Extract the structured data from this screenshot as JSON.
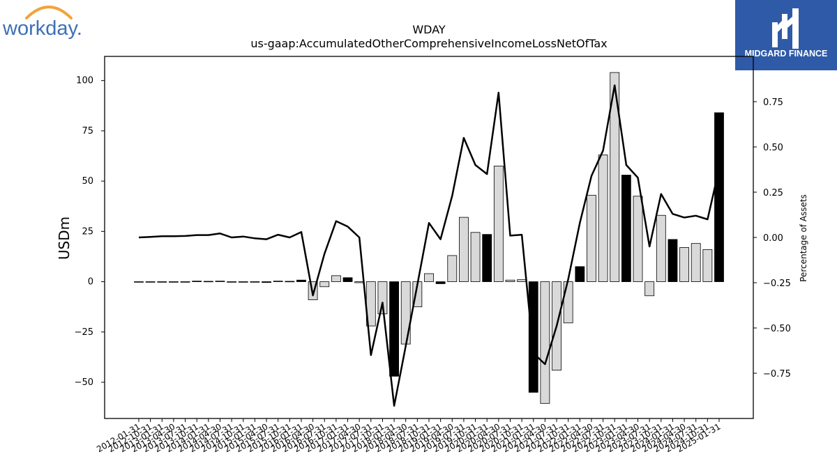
{
  "brand": {
    "left_logo_text": "workday.",
    "left_logo_color": "#3d6fb6",
    "left_logo_arc_color": "#f2a33a",
    "right_logo_text": "MIDGARD FINANCE",
    "right_logo_bg": "#2f5aa8"
  },
  "chart_data": {
    "type": "bar",
    "title": "WDAY",
    "subtitle": "us-gaap:AccumulatedOtherComprehensiveIncomeLossNetOfTax",
    "ylabel": "USDm",
    "ylabel_right": "Percentage of Assets",
    "ylim": [
      -68,
      112
    ],
    "ylim_right": [
      -1.0,
      1.0
    ],
    "yticks": [
      -50,
      -25,
      0,
      25,
      50,
      75,
      100
    ],
    "yticks_right": [
      -0.75,
      -0.5,
      -0.25,
      0.0,
      0.25,
      0.5,
      0.75
    ],
    "yticks_right_labels": [
      "−0.75",
      "−0.50",
      "−0.25",
      "0.00",
      "0.25",
      "0.50",
      "0.75"
    ],
    "ytick_labels": [
      "−50",
      "−25",
      "0",
      "25",
      "50",
      "75",
      "100"
    ],
    "grid": false,
    "categories": [
      "2012-01-31",
      "2012-10-31",
      "2013-01-31",
      "2013-04-30",
      "2013-07-31",
      "2013-10-31",
      "2014-01-31",
      "2014-04-30",
      "2014-07-31",
      "2014-10-31",
      "2015-01-31",
      "2015-04-30",
      "2015-07-31",
      "2015-10-31",
      "2016-01-31",
      "2016-04-30",
      "2016-07-31",
      "2016-10-31",
      "2017-01-31",
      "2017-04-30",
      "2017-07-31",
      "2017-10-31",
      "2018-01-31",
      "2018-04-30",
      "2018-07-31",
      "2018-10-31",
      "2019-01-31",
      "2019-04-30",
      "2019-07-31",
      "2019-10-31",
      "2020-01-31",
      "2020-04-30",
      "2020-07-31",
      "2020-10-31",
      "2021-01-31",
      "2021-04-30",
      "2021-07-31",
      "2021-10-31",
      "2022-01-31",
      "2022-04-30",
      "2022-07-31",
      "2022-10-31",
      "2023-01-31",
      "2023-04-30",
      "2023-07-31",
      "2023-10-31",
      "2024-01-31",
      "2024-04-30",
      "2024-07-31",
      "2024-10-31",
      "2025-01-31"
    ],
    "series": [
      {
        "values": [
          0,
          0,
          0,
          0,
          0,
          0.3,
          0.2,
          0.3,
          0,
          0,
          0,
          -0.4,
          0.3,
          0.2,
          0.8,
          -9,
          -2.5,
          3,
          2,
          -0.5,
          -22,
          -16,
          -47,
          -31,
          -12.5,
          4,
          -1,
          13,
          32,
          24.5,
          23.5,
          57.5,
          0.8,
          1,
          -55,
          -60.5,
          -44,
          -20.5,
          7.5,
          43,
          63,
          104,
          53,
          42.5,
          -7,
          33,
          21,
          17,
          19,
          16,
          84
        ],
        "colors": [
          "#d9d9d9",
          "#d9d9d9",
          "#d9d9d9",
          "#d9d9d9",
          "#d9d9d9",
          "#000000",
          "#d9d9d9",
          "#d9d9d9",
          "#d9d9d9",
          "#d9d9d9",
          "#d9d9d9",
          "#000000",
          "#d9d9d9",
          "#d9d9d9",
          "#000000",
          "#d9d9d9",
          "#d9d9d9",
          "#d9d9d9",
          "#000000",
          "#d9d9d9",
          "#d9d9d9",
          "#d9d9d9",
          "#000000",
          "#d9d9d9",
          "#d9d9d9",
          "#d9d9d9",
          "#000000",
          "#d9d9d9",
          "#d9d9d9",
          "#d9d9d9",
          "#000000",
          "#d9d9d9",
          "#d9d9d9",
          "#d9d9d9",
          "#000000",
          "#d9d9d9",
          "#d9d9d9",
          "#d9d9d9",
          "#000000",
          "#d9d9d9",
          "#d9d9d9",
          "#d9d9d9",
          "#000000",
          "#d9d9d9",
          "#d9d9d9",
          "#d9d9d9",
          "#000000",
          "#d9d9d9",
          "#d9d9d9",
          "#d9d9d9",
          "#000000"
        ]
      },
      {
        "axis": "right",
        "type": "line",
        "values": [
          0.0,
          0.003,
          0.007,
          0.007,
          0.008,
          0.013,
          0.013,
          0.022,
          0.0,
          0.005,
          -0.005,
          -0.01,
          0.015,
          0.0,
          0.03,
          -0.32,
          -0.09,
          0.09,
          0.06,
          -0.0,
          -0.65,
          -0.36,
          -0.93,
          -0.6,
          -0.26,
          0.08,
          -0.01,
          0.23,
          0.55,
          0.4,
          0.35,
          0.8,
          0.01,
          0.015,
          -0.64,
          -0.7,
          -0.49,
          -0.23,
          0.08,
          0.34,
          0.48,
          0.84,
          0.4,
          0.33,
          -0.05,
          0.24,
          0.13,
          0.11,
          0.12,
          0.1,
          0.38
        ]
      }
    ]
  }
}
